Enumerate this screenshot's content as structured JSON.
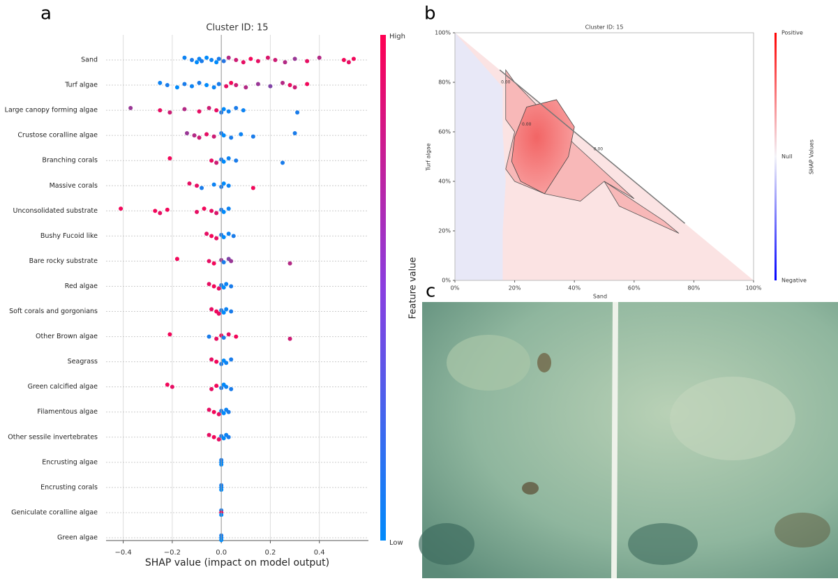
{
  "panels": [
    "a",
    "b",
    "c"
  ],
  "chart_data": [
    {
      "type": "beeswarm",
      "title": "Cluster ID: 15",
      "x_label": "SHAP value (impact on model output)",
      "xlim": [
        -0.47,
        0.6
      ],
      "xticks": [
        {
          "value": -0.4,
          "label": "−0.4"
        },
        {
          "value": -0.2,
          "label": "−0.2"
        },
        {
          "value": 0,
          "label": "0.0"
        },
        {
          "value": 0.2,
          "label": "0.2"
        },
        {
          "value": 0.4,
          "label": "0.4"
        }
      ],
      "colorbar": {
        "label": "Feature value",
        "high": "High",
        "low": "Low",
        "high_color": "#ff0052",
        "low_color": "#008afb"
      },
      "grid": true,
      "features": [
        {
          "name": "Sand",
          "points": [
            [
              -0.15,
              0.05
            ],
            [
              -0.12,
              0.1
            ],
            [
              -0.1,
              0
            ],
            [
              -0.09,
              0.05
            ],
            [
              -0.08,
              0.1
            ],
            [
              -0.06,
              0
            ],
            [
              -0.04,
              0.05
            ],
            [
              -0.02,
              0
            ],
            [
              -0.01,
              0.1
            ],
            [
              0.01,
              0.15
            ],
            [
              0.03,
              0.7
            ],
            [
              0.06,
              0.8
            ],
            [
              0.09,
              0.9
            ],
            [
              0.12,
              0.95
            ],
            [
              0.15,
              0.9
            ],
            [
              0.19,
              0.85
            ],
            [
              0.22,
              0.8
            ],
            [
              0.26,
              0.7
            ],
            [
              0.3,
              0.6
            ],
            [
              0.35,
              0.9
            ],
            [
              0.4,
              0.7
            ],
            [
              0.5,
              0.95
            ],
            [
              0.52,
              0.9
            ],
            [
              0.54,
              0.95
            ]
          ]
        },
        {
          "name": "Turf algae",
          "points": [
            [
              -0.25,
              0.05
            ],
            [
              -0.22,
              0.1
            ],
            [
              -0.18,
              0
            ],
            [
              -0.15,
              0.1
            ],
            [
              -0.12,
              0.05
            ],
            [
              -0.09,
              0.1
            ],
            [
              -0.06,
              0
            ],
            [
              -0.03,
              0.05
            ],
            [
              -0.01,
              0.1
            ],
            [
              0.02,
              0.9
            ],
            [
              0.04,
              0.95
            ],
            [
              0.06,
              0.8
            ],
            [
              0.1,
              0.7
            ],
            [
              0.15,
              0.6
            ],
            [
              0.2,
              0.5
            ],
            [
              0.25,
              0.7
            ],
            [
              0.28,
              0.9
            ],
            [
              0.3,
              0.8
            ],
            [
              0.35,
              0.95
            ]
          ]
        },
        {
          "name": "Large canopy forming algae",
          "points": [
            [
              -0.37,
              0.6
            ],
            [
              -0.25,
              0.9
            ],
            [
              -0.21,
              0.8
            ],
            [
              -0.15,
              0.7
            ],
            [
              -0.09,
              0.9
            ],
            [
              -0.05,
              0.8
            ],
            [
              -0.02,
              0.9
            ],
            [
              0,
              0.1
            ],
            [
              0.01,
              0
            ],
            [
              0.03,
              0.05
            ],
            [
              0.06,
              0.1
            ],
            [
              0.09,
              0.05
            ],
            [
              0.31,
              0.1
            ]
          ]
        },
        {
          "name": "Crustose coralline algae",
          "points": [
            [
              -0.14,
              0.6
            ],
            [
              -0.11,
              0.7
            ],
            [
              -0.09,
              0.8
            ],
            [
              -0.06,
              0.9
            ],
            [
              -0.03,
              0.8
            ],
            [
              0,
              0.1
            ],
            [
              0.01,
              0
            ],
            [
              0.04,
              0.1
            ],
            [
              0.08,
              0.05
            ],
            [
              0.13,
              0.1
            ],
            [
              0.3,
              0.1
            ]
          ]
        },
        {
          "name": "Branching corals",
          "points": [
            [
              -0.21,
              0.95
            ],
            [
              -0.04,
              0.9
            ],
            [
              -0.02,
              0.8
            ],
            [
              0,
              0.1
            ],
            [
              0.01,
              0
            ],
            [
              0.03,
              0.05
            ],
            [
              0.06,
              0.1
            ],
            [
              0.25,
              0.1
            ]
          ]
        },
        {
          "name": "Massive corals",
          "points": [
            [
              -0.13,
              0.9
            ],
            [
              -0.1,
              0.9
            ],
            [
              -0.08,
              0.1
            ],
            [
              -0.03,
              0.05
            ],
            [
              0,
              0.1
            ],
            [
              0.01,
              0
            ],
            [
              0.03,
              0.05
            ],
            [
              0.13,
              0.95
            ]
          ]
        },
        {
          "name": "Unconsolidated substrate",
          "points": [
            [
              -0.41,
              0.95
            ],
            [
              -0.27,
              0.95
            ],
            [
              -0.25,
              0.9
            ],
            [
              -0.22,
              0.95
            ],
            [
              -0.1,
              0.9
            ],
            [
              -0.07,
              0.95
            ],
            [
              -0.04,
              0.9
            ],
            [
              -0.02,
              0.85
            ],
            [
              0,
              0.1
            ],
            [
              0.01,
              0
            ],
            [
              0.03,
              0.05
            ]
          ]
        },
        {
          "name": "Bushy Fucoid like",
          "points": [
            [
              -0.06,
              0.9
            ],
            [
              -0.04,
              0.95
            ],
            [
              -0.02,
              0.9
            ],
            [
              0,
              0.1
            ],
            [
              0.01,
              0
            ],
            [
              0.03,
              0.05
            ],
            [
              0.05,
              0.1
            ]
          ]
        },
        {
          "name": "Bare rocky substrate",
          "points": [
            [
              -0.18,
              0.95
            ],
            [
              -0.05,
              0.9
            ],
            [
              -0.03,
              0.95
            ],
            [
              0,
              0.6
            ],
            [
              0.01,
              0.1
            ],
            [
              0.03,
              0.5
            ],
            [
              0.04,
              0.6
            ],
            [
              0.28,
              0.7
            ]
          ]
        },
        {
          "name": "Red algae",
          "points": [
            [
              -0.05,
              0.9
            ],
            [
              -0.03,
              0.95
            ],
            [
              -0.01,
              0.9
            ],
            [
              0,
              0.1
            ],
            [
              0.01,
              0
            ],
            [
              0.02,
              0.05
            ],
            [
              0.04,
              0.1
            ]
          ]
        },
        {
          "name": "Soft corals and gorgonians",
          "points": [
            [
              -0.04,
              0.9
            ],
            [
              -0.02,
              0.95
            ],
            [
              -0.01,
              0.9
            ],
            [
              0,
              0.1
            ],
            [
              0.01,
              0
            ],
            [
              0.02,
              0.05
            ],
            [
              0.04,
              0.1
            ]
          ]
        },
        {
          "name": "Other Brown algae",
          "points": [
            [
              -0.21,
              0.95
            ],
            [
              -0.05,
              0.1
            ],
            [
              -0.02,
              0.9
            ],
            [
              0,
              0.95
            ],
            [
              0.01,
              0.1
            ],
            [
              0.03,
              0.9
            ],
            [
              0.06,
              0.95
            ],
            [
              0.28,
              0.8
            ]
          ]
        },
        {
          "name": "Seagrass",
          "points": [
            [
              -0.04,
              0.9
            ],
            [
              -0.02,
              0.95
            ],
            [
              0,
              0.1
            ],
            [
              0.01,
              0
            ],
            [
              0.02,
              0.05
            ],
            [
              0.04,
              0.1
            ]
          ]
        },
        {
          "name": "Green calcified algae",
          "points": [
            [
              -0.22,
              0.95
            ],
            [
              -0.2,
              0.9
            ],
            [
              -0.04,
              0.9
            ],
            [
              -0.02,
              0.95
            ],
            [
              0,
              0.1
            ],
            [
              0.01,
              0
            ],
            [
              0.02,
              0.05
            ],
            [
              0.04,
              0.1
            ]
          ]
        },
        {
          "name": "Filamentous algae",
          "points": [
            [
              -0.05,
              0.9
            ],
            [
              -0.03,
              0.95
            ],
            [
              -0.01,
              0.9
            ],
            [
              0,
              0.1
            ],
            [
              0.01,
              0
            ],
            [
              0.02,
              0.05
            ],
            [
              0.03,
              0.1
            ]
          ]
        },
        {
          "name": "Other sessile invertebrates",
          "points": [
            [
              -0.05,
              0.9
            ],
            [
              -0.03,
              0.95
            ],
            [
              -0.01,
              0.9
            ],
            [
              0,
              0.1
            ],
            [
              0.01,
              0
            ],
            [
              0.02,
              0.05
            ],
            [
              0.03,
              0.1
            ]
          ]
        },
        {
          "name": "Encrusting algae",
          "points": [
            [
              0,
              0.1
            ],
            [
              0,
              0.05
            ],
            [
              0,
              0
            ]
          ]
        },
        {
          "name": "Encrusting corals",
          "points": [
            [
              0,
              0.1
            ],
            [
              0,
              0.05
            ],
            [
              0,
              0
            ]
          ]
        },
        {
          "name": "Geniculate coralline algae",
          "points": [
            [
              0,
              0.1
            ],
            [
              0,
              0.95
            ],
            [
              0,
              0
            ]
          ]
        },
        {
          "name": "Green algae",
          "points": [
            [
              0,
              0.1
            ],
            [
              0,
              0.05
            ],
            [
              0,
              0
            ]
          ]
        }
      ]
    },
    {
      "type": "heatmap",
      "title": "Cluster ID: 15",
      "x_label": "Sand",
      "y_label": "Turf algae",
      "xlim": [
        0,
        100
      ],
      "ylim": [
        0,
        100
      ],
      "xticks": [
        {
          "value": 0,
          "label": "0%"
        },
        {
          "value": 20,
          "label": "20%"
        },
        {
          "value": 40,
          "label": "40%"
        },
        {
          "value": 60,
          "label": "60%"
        },
        {
          "value": 80,
          "label": "80%"
        },
        {
          "value": 100,
          "label": "100%"
        }
      ],
      "yticks": [
        {
          "value": 0,
          "label": "0%"
        },
        {
          "value": 20,
          "label": "20%"
        },
        {
          "value": 40,
          "label": "40%"
        },
        {
          "value": 60,
          "label": "60%"
        },
        {
          "value": 80,
          "label": "80%"
        },
        {
          "value": 100,
          "label": "100%"
        }
      ],
      "colorbar": {
        "label": "SHAP Values",
        "top": "Positive",
        "middle": "Null",
        "bottom": "Negative"
      },
      "annotations": [
        {
          "text": "0.00",
          "x": 17,
          "y": 80
        },
        {
          "text": "0.00",
          "x": 24,
          "y": 63
        },
        {
          "text": "0.00",
          "x": 48,
          "y": 53
        }
      ]
    }
  ]
}
